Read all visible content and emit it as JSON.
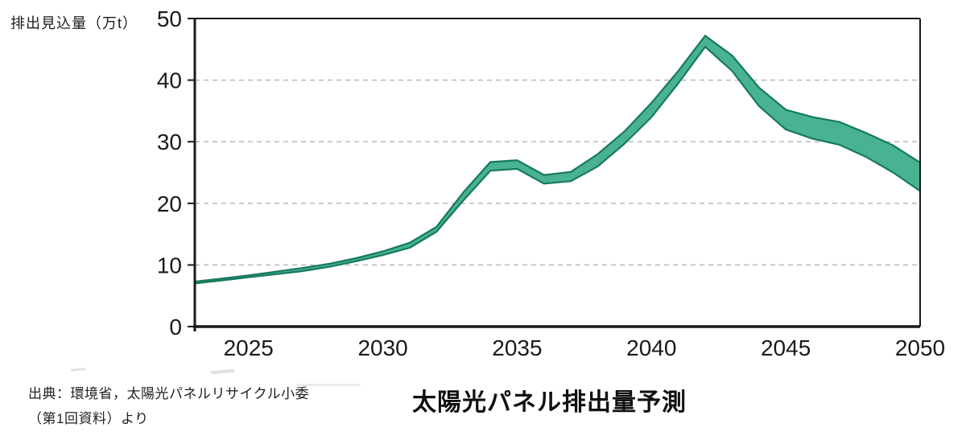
{
  "y_axis_label": "排出見込量（万t）",
  "title": "太陽光パネル排出量予測",
  "source": {
    "line1": "出典：環境省，太陽光パネルリサイクル小委",
    "line2": "（第1回資料）より"
  },
  "colors": {
    "band_fill": "#48B293",
    "band_edge": "#17795F",
    "axis": "#1a1a1a",
    "grid": "#b8b8b8",
    "text": "#1a1a1a"
  },
  "chart_data": {
    "type": "area",
    "subtype": "range-band",
    "title": "太陽光パネル排出量予測",
    "xlabel": "",
    "ylabel": "排出見込量（万t）",
    "x": [
      2023,
      2024,
      2025,
      2026,
      2027,
      2028,
      2029,
      2030,
      2031,
      2032,
      2033,
      2034,
      2035,
      2036,
      2037,
      2038,
      2039,
      2040,
      2041,
      2042,
      2043,
      2044,
      2045,
      2046,
      2047,
      2048,
      2049,
      2050
    ],
    "series": [
      {
        "name": "lower",
        "values": [
          7.0,
          7.5,
          8.0,
          8.5,
          9.0,
          9.7,
          10.6,
          11.6,
          12.8,
          15.4,
          20.5,
          25.3,
          25.6,
          23.2,
          23.6,
          26.0,
          29.7,
          34.0,
          39.5,
          45.4,
          41.5,
          35.8,
          32.0,
          30.5,
          29.5,
          27.5,
          25.0,
          22.0
        ]
      },
      {
        "name": "upper",
        "values": [
          7.3,
          7.8,
          8.3,
          8.9,
          9.5,
          10.2,
          11.1,
          12.2,
          13.6,
          16.2,
          21.8,
          26.7,
          27.0,
          24.6,
          25.1,
          28.0,
          31.7,
          36.3,
          41.5,
          47.2,
          44.0,
          38.8,
          35.2,
          34.0,
          33.2,
          31.4,
          29.4,
          26.6
        ]
      }
    ],
    "xlim": [
      2023,
      2050
    ],
    "ylim": [
      0,
      50
    ],
    "x_ticks": [
      2025,
      2030,
      2035,
      2040,
      2045,
      2050
    ],
    "y_ticks": [
      0,
      10,
      20,
      30,
      40,
      50
    ],
    "grid": "horizontal-dashed",
    "legend": "none"
  }
}
